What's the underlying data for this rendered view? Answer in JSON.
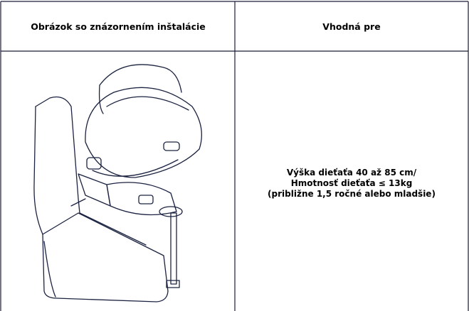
{
  "table": {
    "headers": [
      "Obrázok so znázornením inštalácie",
      "Vhodná pre"
    ],
    "rows": [
      {
        "cells": [
          null,
          [
            "Výška dieťaťa 40 až 85 cm/",
            "Hmotnosť dieťaťa ≤ 13kg",
            "(približne 1,5 ročné alebo mladšie)"
          ]
        ]
      }
    ]
  }
}
